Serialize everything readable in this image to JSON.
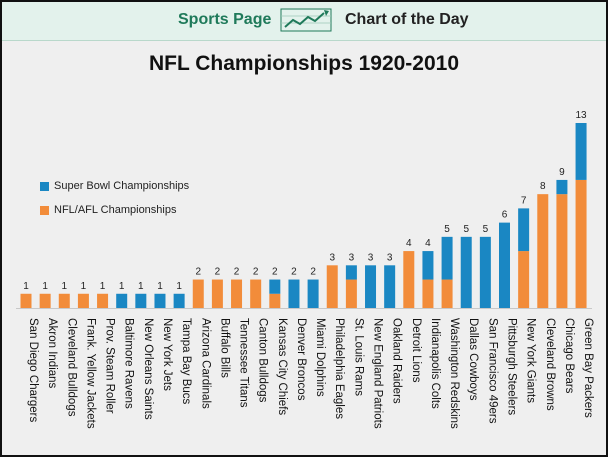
{
  "banner": {
    "left": "Sports Page",
    "right": "Chart of the Day",
    "icon": "trend-chart-icon"
  },
  "chart_data": {
    "type": "bar",
    "stacked": true,
    "title": "NFL Championships 1920-2010",
    "xlabel": "",
    "ylabel": "",
    "ylim": [
      0,
      13
    ],
    "grid": false,
    "legend_position": "left",
    "categories": [
      "San Diego Chargers",
      "Akron Indians",
      "Cleveland Bulldogs",
      "Frank. Yellow Jackets",
      "Prov. Steam Roller",
      "Baltimore Ravens",
      "New Orleans Saints",
      "New York Jets",
      "Tampa Bay Bucs",
      "Arizona Cardinals",
      "Buffalo Bills",
      "Tennessee Titans",
      "Canton Bulldogs",
      "Kansas City Chiefs",
      "Denver Broncos",
      "Miami Dolphins",
      "Philadelphia Eagles",
      "St. Louis Rams",
      "New England Patriots",
      "Oakland Raiders",
      "Detroit Lions",
      "Indianapolis Colts",
      "Washington Redskins",
      "Dallas Cowboys",
      "San Francisco 49ers",
      "Pittsburgh Steelers",
      "New York Giants",
      "Cleveland Browns",
      "Chicago Bears",
      "Green Bay Packers"
    ],
    "series": [
      {
        "name": "NFL/AFL Championships",
        "color": "#f28c3a",
        "values": [
          1,
          1,
          1,
          1,
          1,
          0,
          0,
          0,
          0,
          2,
          2,
          2,
          2,
          1,
          0,
          0,
          3,
          2,
          0,
          0,
          4,
          2,
          2,
          0,
          0,
          0,
          4,
          8,
          8,
          9
        ]
      },
      {
        "name": "Super Bowl Championships",
        "color": "#1a87c3",
        "values": [
          0,
          0,
          0,
          0,
          0,
          1,
          1,
          1,
          1,
          0,
          0,
          0,
          0,
          1,
          2,
          2,
          0,
          1,
          3,
          3,
          0,
          2,
          3,
          5,
          5,
          6,
          3,
          0,
          1,
          4
        ]
      }
    ],
    "totals": [
      "1",
      "1",
      "1",
      "1",
      "1",
      "1",
      "1",
      "1",
      "1",
      "2",
      "2",
      "2",
      "2",
      "2",
      "2",
      "2",
      "3",
      "3",
      "3",
      "3",
      "4",
      "4",
      "5",
      "5",
      "5",
      "6",
      "7",
      "8",
      "9",
      "13"
    ]
  }
}
